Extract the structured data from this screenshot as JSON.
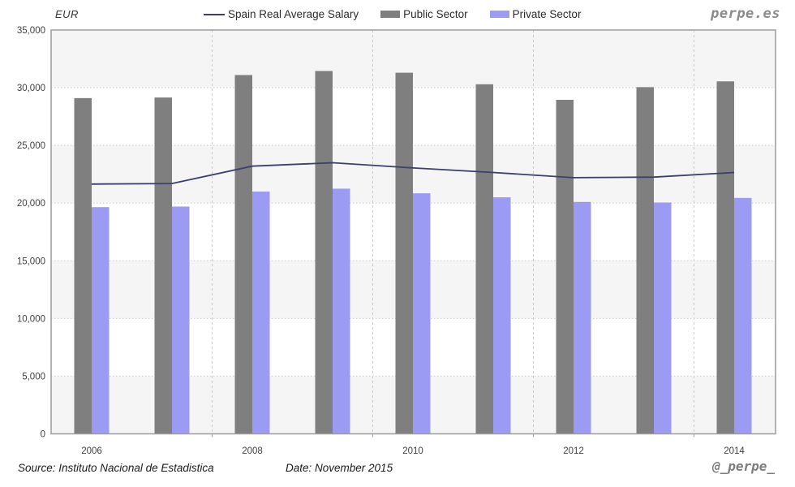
{
  "header": {
    "unit_label": "EUR",
    "logo": "perpe.es",
    "legend": [
      {
        "label": "Spain Real Average Salary",
        "type": "line",
        "color": "#3a3f6e"
      },
      {
        "label": "Public Sector",
        "type": "bar",
        "color": "#7f7f7f"
      },
      {
        "label": "Private Sector",
        "type": "bar",
        "color": "#9b9bf4"
      }
    ]
  },
  "footer": {
    "source": "Source: Instituto Nacional de Estadistica",
    "date": "Date: November 2015",
    "handle": "@_perpe_"
  },
  "chart_data": {
    "type": "combo",
    "categories": [
      2006,
      2007,
      2008,
      2009,
      2010,
      2011,
      2012,
      2013,
      2014
    ],
    "x_tick_labels": [
      "2006",
      "2008",
      "2010",
      "2012",
      "2014"
    ],
    "series": [
      {
        "name": "Spain Real Average Salary",
        "type": "line",
        "color": "#3a3f6e",
        "values": [
          21650,
          21700,
          23200,
          23500,
          23050,
          22650,
          22200,
          22250,
          22650
        ]
      },
      {
        "name": "Public Sector",
        "type": "bar",
        "color": "#7f7f7f",
        "values": [
          29100,
          29150,
          31100,
          31450,
          31300,
          30300,
          28950,
          30050,
          30550
        ]
      },
      {
        "name": "Private Sector",
        "type": "bar",
        "color": "#9b9bf4",
        "values": [
          19650,
          19700,
          21000,
          21250,
          20850,
          20500,
          20100,
          20050,
          20450
        ]
      }
    ],
    "title": "",
    "xlabel": "",
    "ylabel": "EUR",
    "ylim": [
      0,
      35000
    ],
    "y_tick_step": 5000,
    "grid": true,
    "legend_position": "top",
    "colors": {
      "band": "#f5f5f5",
      "gridline": "#c9c9c9",
      "border": "#9c9c9c",
      "tick_text": "#404040"
    }
  }
}
